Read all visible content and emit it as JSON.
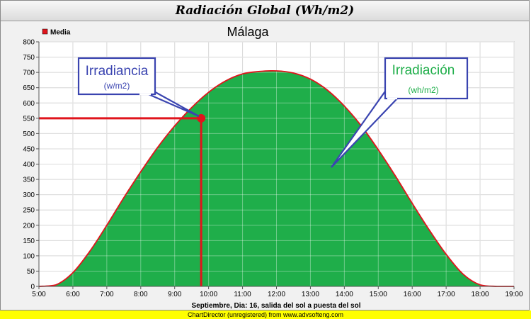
{
  "header": {
    "title": "Radiación Global (Wh/m2)"
  },
  "footer": {
    "text": "ChartDirector (unregistered) from www.advsofteng.com"
  },
  "colors": {
    "fill": "#1fae4a",
    "curve": "#e0141c",
    "marker": "#e0141c",
    "annotation_border": "#3a44b0",
    "irradiancia_text": "#3a44b0",
    "irradiacion_text": "#1fae4a"
  },
  "annotations": {
    "irradiancia": {
      "title": "Irradiancia",
      "unit": "(w/m2)"
    },
    "irradiacion": {
      "title": "Irradiación",
      "unit": "(wh/m2)"
    }
  },
  "chart_data": {
    "type": "area",
    "title": "Málaga",
    "xlabel": "Septiembre, Dia: 16, salida del sol a puesta del sol",
    "ylabel": "",
    "legend": {
      "entries": [
        "Media"
      ],
      "position": "top-left"
    },
    "xlim": [
      5,
      19
    ],
    "ylim": [
      0,
      800
    ],
    "y_ticks": [
      0,
      50,
      100,
      150,
      200,
      250,
      300,
      350,
      400,
      450,
      500,
      550,
      600,
      650,
      700,
      750,
      800
    ],
    "x_ticks": [
      5,
      6,
      7,
      8,
      9,
      10,
      11,
      12,
      13,
      14,
      15,
      16,
      17,
      18,
      19
    ],
    "x_tick_labels": [
      "5:00",
      "6:00",
      "7:00",
      "8:00",
      "9:00",
      "10:00",
      "11:00",
      "12:00",
      "13:00",
      "14:00",
      "15:00",
      "16:00",
      "17:00",
      "18:00",
      "19:00"
    ],
    "grid": true,
    "series": [
      {
        "name": "Media",
        "x": [
          5.0,
          5.5,
          6.0,
          6.5,
          7.0,
          7.5,
          8.0,
          8.5,
          9.0,
          9.5,
          10.0,
          10.5,
          11.0,
          11.5,
          12.0,
          12.5,
          13.0,
          13.5,
          14.0,
          14.5,
          15.0,
          15.5,
          16.0,
          16.5,
          17.0,
          17.5,
          18.0,
          18.5,
          19.0
        ],
        "values": [
          0,
          5,
          45,
          115,
          200,
          290,
          375,
          455,
          525,
          585,
          635,
          672,
          695,
          703,
          705,
          698,
          678,
          642,
          590,
          525,
          447,
          362,
          272,
          185,
          105,
          40,
          5,
          0,
          0
        ]
      }
    ],
    "highlight": {
      "x": 9.78,
      "y": 550
    }
  }
}
